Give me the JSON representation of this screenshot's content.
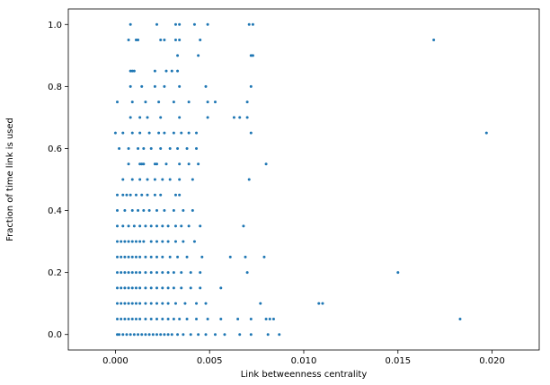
{
  "colors": {
    "marker": "#1f77b4",
    "axes": "#000000",
    "background": "#ffffff"
  },
  "chart_data": {
    "type": "scatter",
    "title": "",
    "xlabel": "Link betweenness centrality",
    "ylabel": "Fraction of time link is used",
    "xlim": [
      -0.0025,
      0.0225
    ],
    "ylim": [
      -0.05,
      1.05
    ],
    "xticks": [
      0.0,
      0.005,
      0.01,
      0.015,
      0.02
    ],
    "xtick_labels": [
      "0.000",
      "0.005",
      "0.010",
      "0.015",
      "0.020"
    ],
    "yticks": [
      0.0,
      0.2,
      0.4,
      0.6,
      0.8,
      1.0
    ],
    "ytick_labels": [
      "0.0",
      "0.2",
      "0.4",
      "0.6",
      "0.8",
      "1.0"
    ],
    "grid": false,
    "marker": "dot",
    "series": [
      {
        "points": [
          [
            0.0008,
            1.0
          ],
          [
            0.0022,
            1.0
          ],
          [
            0.0032,
            1.0
          ],
          [
            0.0034,
            1.0
          ],
          [
            0.0042,
            1.0
          ],
          [
            0.0049,
            1.0
          ],
          [
            0.0071,
            1.0
          ],
          [
            0.0073,
            1.0
          ],
          [
            0.0007,
            0.95
          ],
          [
            0.0011,
            0.95
          ],
          [
            0.0012,
            0.95
          ],
          [
            0.0024,
            0.95
          ],
          [
            0.0026,
            0.95
          ],
          [
            0.0032,
            0.95
          ],
          [
            0.0034,
            0.95
          ],
          [
            0.0045,
            0.95
          ],
          [
            0.0169,
            0.95
          ],
          [
            0.0033,
            0.9
          ],
          [
            0.0044,
            0.9
          ],
          [
            0.0072,
            0.9
          ],
          [
            0.0073,
            0.9
          ],
          [
            0.0008,
            0.85
          ],
          [
            0.0009,
            0.85
          ],
          [
            0.001,
            0.85
          ],
          [
            0.0021,
            0.85
          ],
          [
            0.0027,
            0.85
          ],
          [
            0.003,
            0.85
          ],
          [
            0.0033,
            0.85
          ],
          [
            0.0008,
            0.8
          ],
          [
            0.0014,
            0.8
          ],
          [
            0.0021,
            0.8
          ],
          [
            0.0026,
            0.8
          ],
          [
            0.0034,
            0.8
          ],
          [
            0.0048,
            0.8
          ],
          [
            0.0072,
            0.8
          ],
          [
            0.0001,
            0.75
          ],
          [
            0.0009,
            0.75
          ],
          [
            0.0016,
            0.75
          ],
          [
            0.0023,
            0.75
          ],
          [
            0.0031,
            0.75
          ],
          [
            0.0039,
            0.75
          ],
          [
            0.0049,
            0.75
          ],
          [
            0.0053,
            0.75
          ],
          [
            0.007,
            0.75
          ],
          [
            0.0008,
            0.7
          ],
          [
            0.0013,
            0.7
          ],
          [
            0.0017,
            0.7
          ],
          [
            0.0024,
            0.7
          ],
          [
            0.0034,
            0.7
          ],
          [
            0.0049,
            0.7
          ],
          [
            0.0063,
            0.7
          ],
          [
            0.0066,
            0.7
          ],
          [
            0.007,
            0.7
          ],
          [
            0.0,
            0.65
          ],
          [
            0.0004,
            0.65
          ],
          [
            0.0009,
            0.65
          ],
          [
            0.0013,
            0.65
          ],
          [
            0.0018,
            0.65
          ],
          [
            0.0023,
            0.65
          ],
          [
            0.0026,
            0.65
          ],
          [
            0.0031,
            0.65
          ],
          [
            0.0035,
            0.65
          ],
          [
            0.0039,
            0.65
          ],
          [
            0.0043,
            0.65
          ],
          [
            0.0072,
            0.65
          ],
          [
            0.0197,
            0.65
          ],
          [
            0.0002,
            0.6
          ],
          [
            0.0007,
            0.6
          ],
          [
            0.0012,
            0.6
          ],
          [
            0.0015,
            0.6
          ],
          [
            0.0019,
            0.6
          ],
          [
            0.0024,
            0.6
          ],
          [
            0.0029,
            0.6
          ],
          [
            0.0033,
            0.6
          ],
          [
            0.0038,
            0.6
          ],
          [
            0.0043,
            0.6
          ],
          [
            0.0007,
            0.55
          ],
          [
            0.0013,
            0.55
          ],
          [
            0.0014,
            0.55
          ],
          [
            0.0015,
            0.55
          ],
          [
            0.0021,
            0.55
          ],
          [
            0.0022,
            0.55
          ],
          [
            0.0027,
            0.55
          ],
          [
            0.0034,
            0.55
          ],
          [
            0.0039,
            0.55
          ],
          [
            0.0044,
            0.55
          ],
          [
            0.008,
            0.55
          ],
          [
            0.0004,
            0.5
          ],
          [
            0.0009,
            0.5
          ],
          [
            0.0013,
            0.5
          ],
          [
            0.0017,
            0.5
          ],
          [
            0.0021,
            0.5
          ],
          [
            0.0025,
            0.5
          ],
          [
            0.0029,
            0.5
          ],
          [
            0.0034,
            0.5
          ],
          [
            0.0041,
            0.5
          ],
          [
            0.0071,
            0.5
          ],
          [
            0.0001,
            0.45
          ],
          [
            0.0004,
            0.45
          ],
          [
            0.0006,
            0.45
          ],
          [
            0.0008,
            0.45
          ],
          [
            0.0011,
            0.45
          ],
          [
            0.0014,
            0.45
          ],
          [
            0.0017,
            0.45
          ],
          [
            0.0021,
            0.45
          ],
          [
            0.0024,
            0.45
          ],
          [
            0.0032,
            0.45
          ],
          [
            0.0034,
            0.45
          ],
          [
            0.0001,
            0.4
          ],
          [
            0.0005,
            0.4
          ],
          [
            0.0009,
            0.4
          ],
          [
            0.0012,
            0.4
          ],
          [
            0.0015,
            0.4
          ],
          [
            0.0018,
            0.4
          ],
          [
            0.0022,
            0.4
          ],
          [
            0.0026,
            0.4
          ],
          [
            0.0031,
            0.4
          ],
          [
            0.0036,
            0.4
          ],
          [
            0.0041,
            0.4
          ],
          [
            0.0001,
            0.35
          ],
          [
            0.0004,
            0.35
          ],
          [
            0.0007,
            0.35
          ],
          [
            0.001,
            0.35
          ],
          [
            0.0013,
            0.35
          ],
          [
            0.0016,
            0.35
          ],
          [
            0.0019,
            0.35
          ],
          [
            0.0022,
            0.35
          ],
          [
            0.0025,
            0.35
          ],
          [
            0.0028,
            0.35
          ],
          [
            0.0032,
            0.35
          ],
          [
            0.0035,
            0.35
          ],
          [
            0.0039,
            0.35
          ],
          [
            0.0045,
            0.35
          ],
          [
            0.0068,
            0.35
          ],
          [
            0.0001,
            0.3
          ],
          [
            0.0003,
            0.3
          ],
          [
            0.0005,
            0.3
          ],
          [
            0.0007,
            0.3
          ],
          [
            0.0009,
            0.3
          ],
          [
            0.0011,
            0.3
          ],
          [
            0.0013,
            0.3
          ],
          [
            0.0015,
            0.3
          ],
          [
            0.0019,
            0.3
          ],
          [
            0.0022,
            0.3
          ],
          [
            0.0025,
            0.3
          ],
          [
            0.0028,
            0.3
          ],
          [
            0.0032,
            0.3
          ],
          [
            0.0036,
            0.3
          ],
          [
            0.0042,
            0.3
          ],
          [
            0.0001,
            0.25
          ],
          [
            0.0003,
            0.25
          ],
          [
            0.0005,
            0.25
          ],
          [
            0.0007,
            0.25
          ],
          [
            0.0009,
            0.25
          ],
          [
            0.0011,
            0.25
          ],
          [
            0.0013,
            0.25
          ],
          [
            0.0016,
            0.25
          ],
          [
            0.0019,
            0.25
          ],
          [
            0.0022,
            0.25
          ],
          [
            0.0025,
            0.25
          ],
          [
            0.0029,
            0.25
          ],
          [
            0.0033,
            0.25
          ],
          [
            0.0038,
            0.25
          ],
          [
            0.0046,
            0.25
          ],
          [
            0.0061,
            0.25
          ],
          [
            0.0069,
            0.25
          ],
          [
            0.0079,
            0.25
          ],
          [
            0.0001,
            0.2
          ],
          [
            0.0003,
            0.2
          ],
          [
            0.0005,
            0.2
          ],
          [
            0.0007,
            0.2
          ],
          [
            0.0009,
            0.2
          ],
          [
            0.0011,
            0.2
          ],
          [
            0.0013,
            0.2
          ],
          [
            0.0016,
            0.2
          ],
          [
            0.0019,
            0.2
          ],
          [
            0.0022,
            0.2
          ],
          [
            0.0025,
            0.2
          ],
          [
            0.0028,
            0.2
          ],
          [
            0.0031,
            0.2
          ],
          [
            0.0035,
            0.2
          ],
          [
            0.004,
            0.2
          ],
          [
            0.0045,
            0.2
          ],
          [
            0.007,
            0.2
          ],
          [
            0.015,
            0.2
          ],
          [
            0.0001,
            0.15
          ],
          [
            0.0003,
            0.15
          ],
          [
            0.0005,
            0.15
          ],
          [
            0.0007,
            0.15
          ],
          [
            0.0009,
            0.15
          ],
          [
            0.0011,
            0.15
          ],
          [
            0.0013,
            0.15
          ],
          [
            0.0016,
            0.15
          ],
          [
            0.0019,
            0.15
          ],
          [
            0.0022,
            0.15
          ],
          [
            0.0025,
            0.15
          ],
          [
            0.0028,
            0.15
          ],
          [
            0.0031,
            0.15
          ],
          [
            0.0035,
            0.15
          ],
          [
            0.004,
            0.15
          ],
          [
            0.0045,
            0.15
          ],
          [
            0.0056,
            0.15
          ],
          [
            0.0001,
            0.1
          ],
          [
            0.0003,
            0.1
          ],
          [
            0.0005,
            0.1
          ],
          [
            0.0007,
            0.1
          ],
          [
            0.0009,
            0.1
          ],
          [
            0.0011,
            0.1
          ],
          [
            0.0013,
            0.1
          ],
          [
            0.0016,
            0.1
          ],
          [
            0.0019,
            0.1
          ],
          [
            0.0022,
            0.1
          ],
          [
            0.0025,
            0.1
          ],
          [
            0.0028,
            0.1
          ],
          [
            0.0032,
            0.1
          ],
          [
            0.0037,
            0.1
          ],
          [
            0.0043,
            0.1
          ],
          [
            0.0048,
            0.1
          ],
          [
            0.0077,
            0.1
          ],
          [
            0.0108,
            0.1
          ],
          [
            0.011,
            0.1
          ],
          [
            0.0001,
            0.05
          ],
          [
            0.0003,
            0.05
          ],
          [
            0.0005,
            0.05
          ],
          [
            0.0007,
            0.05
          ],
          [
            0.0009,
            0.05
          ],
          [
            0.0011,
            0.05
          ],
          [
            0.0013,
            0.05
          ],
          [
            0.0016,
            0.05
          ],
          [
            0.0019,
            0.05
          ],
          [
            0.0022,
            0.05
          ],
          [
            0.0025,
            0.05
          ],
          [
            0.0028,
            0.05
          ],
          [
            0.0031,
            0.05
          ],
          [
            0.0034,
            0.05
          ],
          [
            0.0038,
            0.05
          ],
          [
            0.0043,
            0.05
          ],
          [
            0.0049,
            0.05
          ],
          [
            0.0056,
            0.05
          ],
          [
            0.0065,
            0.05
          ],
          [
            0.0072,
            0.05
          ],
          [
            0.008,
            0.05
          ],
          [
            0.0082,
            0.05
          ],
          [
            0.0084,
            0.05
          ],
          [
            0.0183,
            0.05
          ],
          [
            0.0001,
            0.0
          ],
          [
            0.0002,
            0.0
          ],
          [
            0.0004,
            0.0
          ],
          [
            0.0006,
            0.0
          ],
          [
            0.0008,
            0.0
          ],
          [
            0.001,
            0.0
          ],
          [
            0.0012,
            0.0
          ],
          [
            0.0014,
            0.0
          ],
          [
            0.0016,
            0.0
          ],
          [
            0.0018,
            0.0
          ],
          [
            0.002,
            0.0
          ],
          [
            0.0022,
            0.0
          ],
          [
            0.0024,
            0.0
          ],
          [
            0.0026,
            0.0
          ],
          [
            0.0028,
            0.0
          ],
          [
            0.003,
            0.0
          ],
          [
            0.0033,
            0.0
          ],
          [
            0.0036,
            0.0
          ],
          [
            0.004,
            0.0
          ],
          [
            0.0044,
            0.0
          ],
          [
            0.0048,
            0.0
          ],
          [
            0.0053,
            0.0
          ],
          [
            0.0058,
            0.0
          ],
          [
            0.0066,
            0.0
          ],
          [
            0.0072,
            0.0
          ],
          [
            0.0081,
            0.0
          ],
          [
            0.0087,
            0.0
          ]
        ]
      }
    ]
  }
}
